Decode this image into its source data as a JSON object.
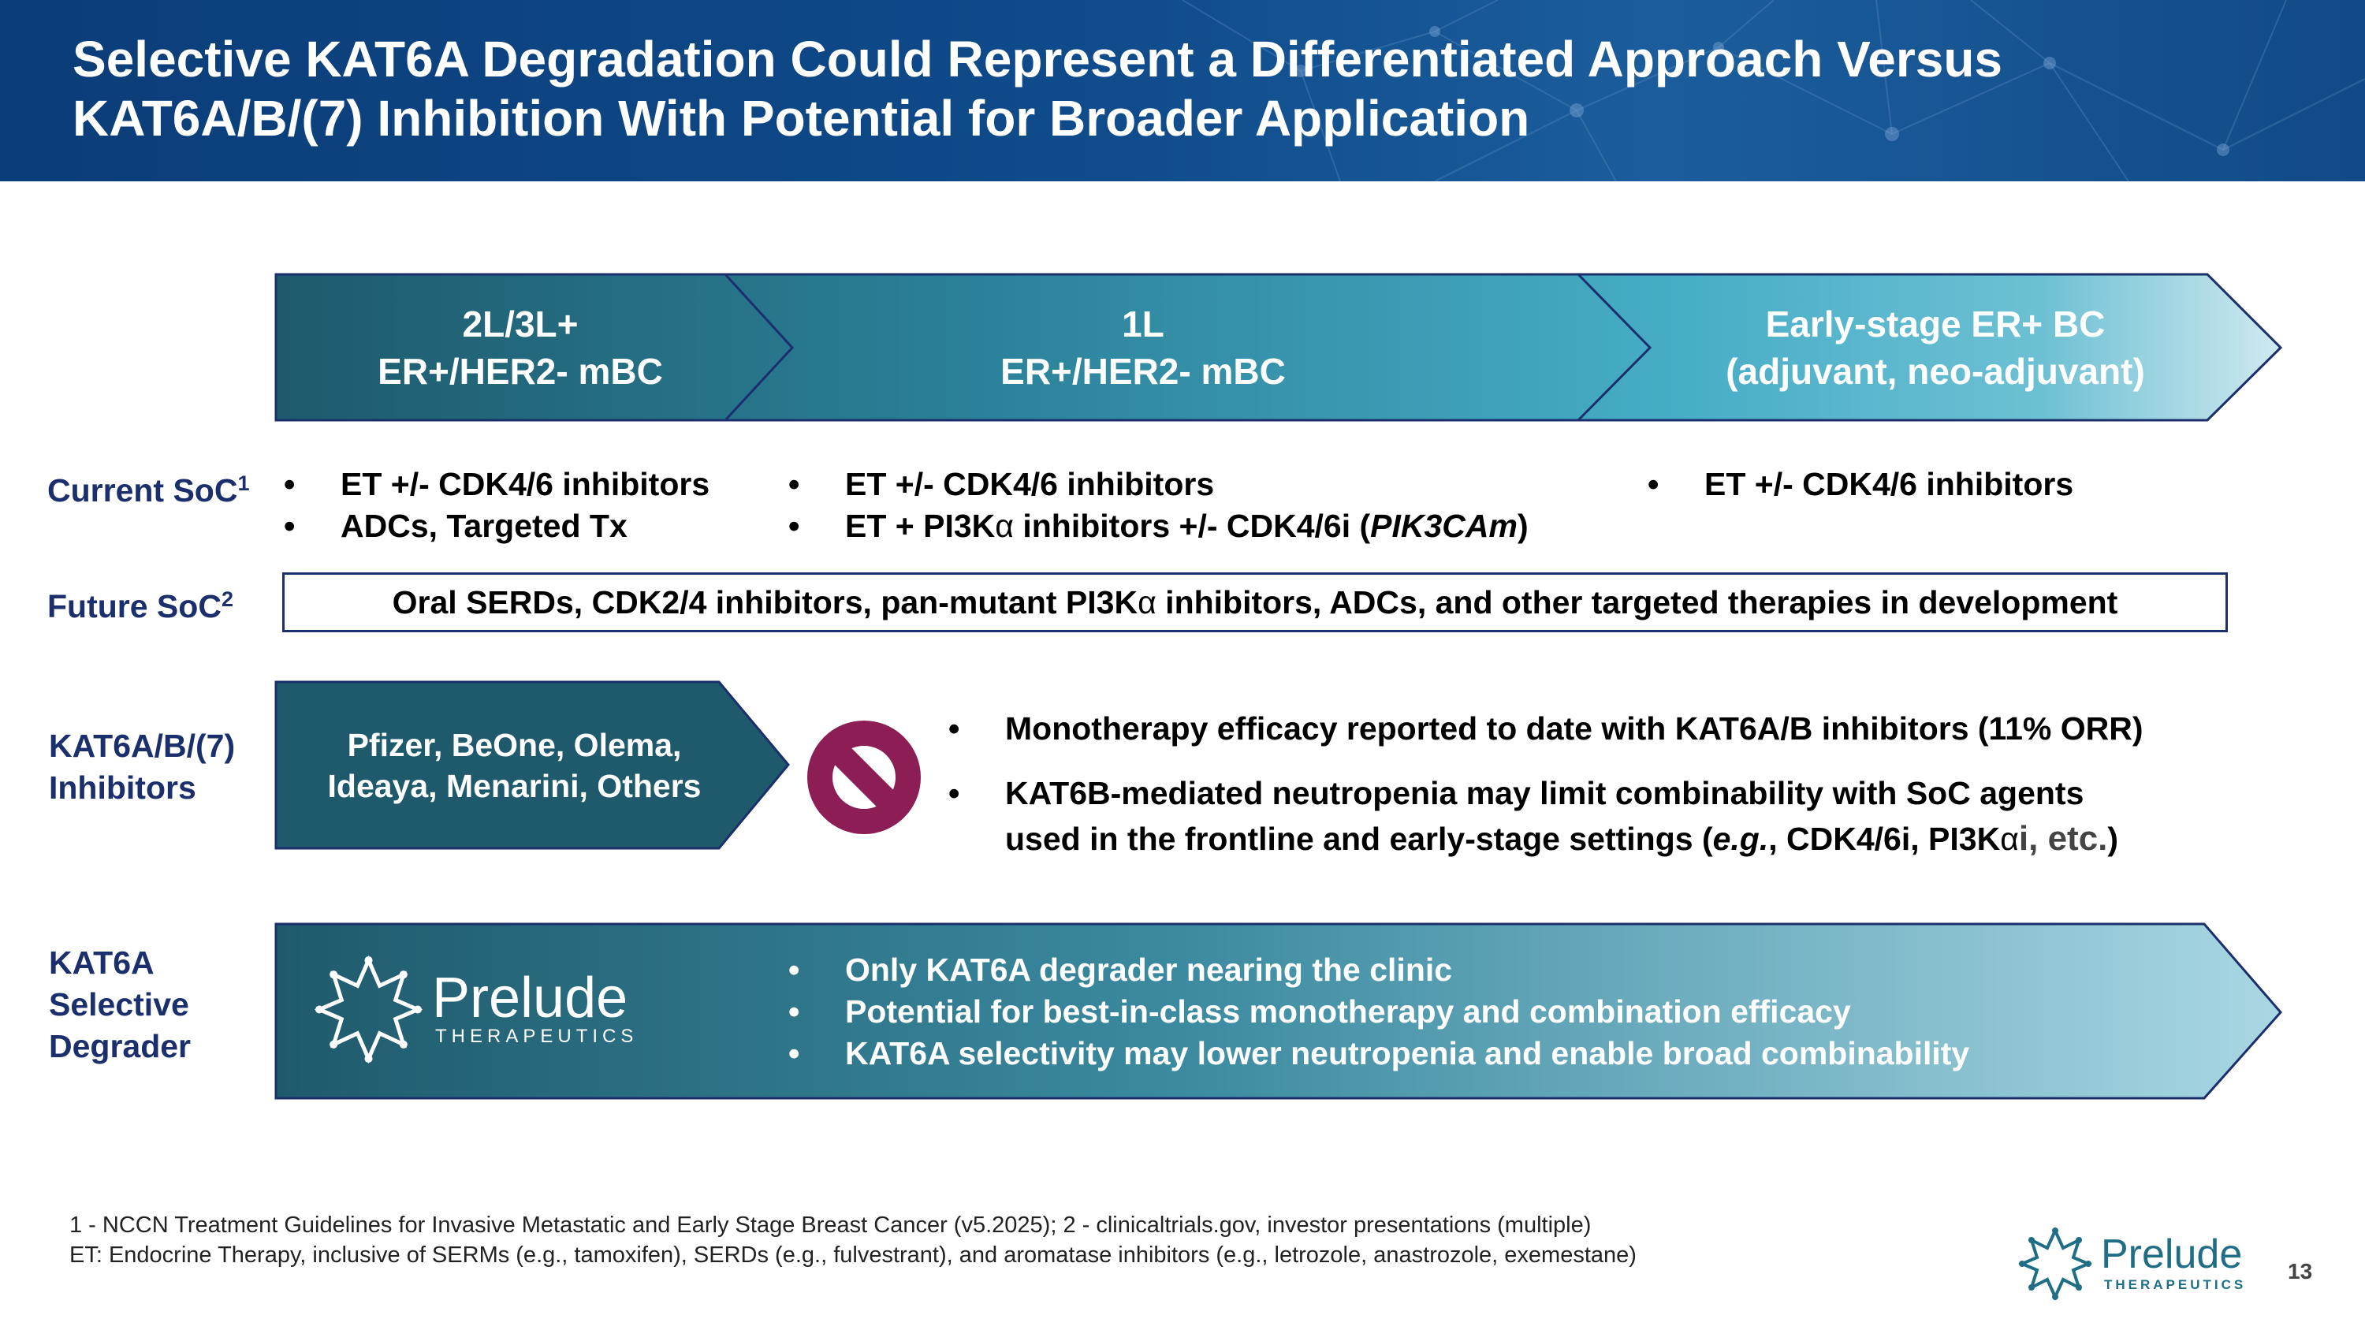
{
  "header": {
    "title_line1": "Selective KAT6A Degradation Could Represent a Differentiated Approach Versus",
    "title_line2": "KAT6A/B/(7) Inhibition With Potential for Broader Application"
  },
  "stages": [
    {
      "line1": "2L/3L+",
      "line2": "ER+/HER2- mBC"
    },
    {
      "line1": "1L",
      "line2": "ER+/HER2- mBC"
    },
    {
      "line1": "Early-stage ER+ BC",
      "line2": "(adjuvant, neo-adjuvant)"
    }
  ],
  "current_soc": {
    "label": "Current SoC",
    "sup": "1",
    "col1": [
      "ET +/- CDK4/6 inhibitors",
      "ADCs, Targeted Tx"
    ],
    "col2_item1": "ET +/- CDK4/6 inhibitors",
    "col2_item2_prefix": "ET + PI3K",
    "col2_item2_alpha": "α",
    "col2_item2_mid": " inhibitors +/- CDK4/6i (",
    "col2_item2_italic": "PIK3CAm",
    "col2_item2_suffix": ")",
    "col3": [
      "ET +/- CDK4/6 inhibitors"
    ]
  },
  "future_soc": {
    "label": "Future SoC",
    "sup": "2",
    "text_prefix": "Oral SERDs, CDK2/4 inhibitors, pan-mutant PI3K",
    "text_alpha": "α",
    "text_suffix": " inhibitors, ADCs, and other targeted therapies in development"
  },
  "inhibitors": {
    "label_line1": "KAT6A/B/(7)",
    "label_line2": "Inhibitors",
    "box_line1": "Pfizer, BeOne, Olema,",
    "box_line2": "Ideaya, Menarini, Others",
    "icon": "prohibited-icon",
    "icon_color": "#8c1d55",
    "bullet1": "Monotherapy efficacy reported to date with KAT6A/B inhibitors (11% ORR)",
    "bullet2_line1": "KAT6B-mediated neutropenia may limit combinability with SoC agents",
    "bullet2_line2_prefix": "used in the frontline and early-stage settings (",
    "bullet2_line2_italic": "e.g.",
    "bullet2_line2_mid": ", CDK4/6i, PI3K",
    "bullet2_line2_alpha": "α",
    "bullet2_line2_etc": "i, etc.",
    "bullet2_line2_suffix": ")"
  },
  "degrader": {
    "label_line1": "KAT6A",
    "label_line2": "Selective",
    "label_line3": "Degrader",
    "logo_name": "Prelude",
    "logo_sub": "THERAPEUTICS",
    "bullets": [
      "Only KAT6A degrader nearing the clinic",
      "Potential for best-in-class monotherapy and combination efficacy",
      "KAT6A selectivity may lower neutropenia and enable broad combinability"
    ]
  },
  "footnotes": {
    "line1": "1 - NCCN Treatment Guidelines for Invasive Metastatic and Early Stage Breast Cancer (v5.2025); 2 - clinicaltrials.gov, investor presentations (multiple)",
    "line2": "ET:  Endocrine Therapy, inclusive of SERMs (e.g., tamoxifen), SERDs (e.g., fulvestrant), and aromatase inhibitors (e.g., letrozole, anastrozole, exemestane)"
  },
  "footer_logo": {
    "name": "Prelude",
    "sub": "THERAPEUTICS"
  },
  "page_number": "13",
  "colors": {
    "navy": "#1a2f6b",
    "header_blue": "#0f4a8a",
    "teal_dark": "#1d5b6e",
    "teal_mid": "#3ea3bd",
    "teal_light": "#b8dfe8",
    "prohibit": "#8c1d55"
  }
}
